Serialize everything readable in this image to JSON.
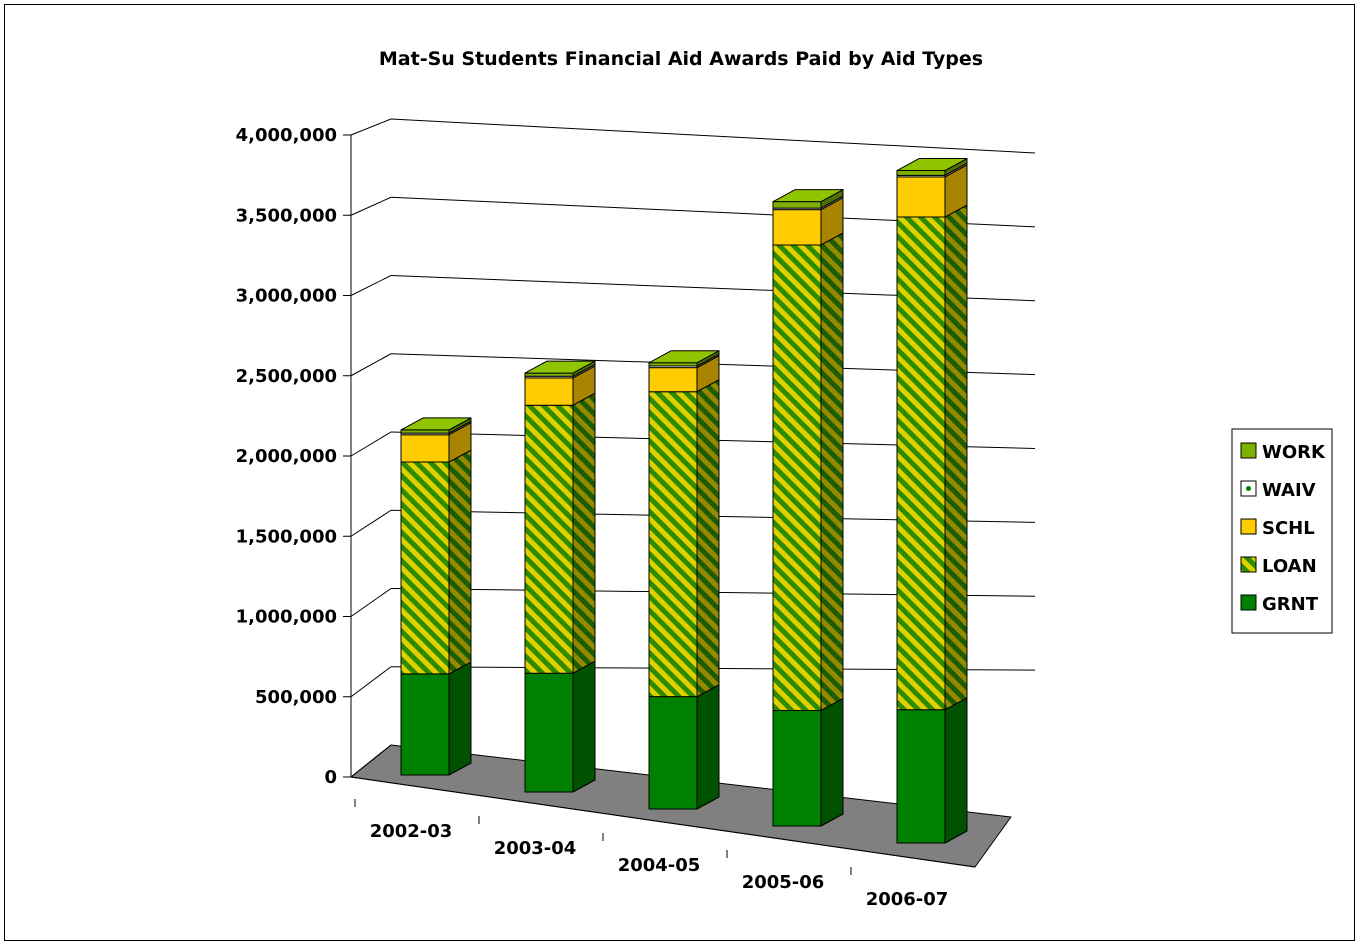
{
  "chart_data": {
    "type": "bar",
    "stacked": true,
    "style": "3d-stacked-column",
    "title": "Mat-Su Students Financial Aid Awards Paid by Aid Types",
    "xlabel": "",
    "ylabel": "",
    "ylim": [
      0,
      4000000
    ],
    "y_ticks": [
      "0",
      "500,000",
      "1,000,000",
      "1,500,000",
      "2,000,000",
      "2,500,000",
      "3,000,000",
      "3,500,000",
      "4,000,000"
    ],
    "y_tick_values": [
      0,
      500000,
      1000000,
      1500000,
      2000000,
      2500000,
      3000000,
      3500000,
      4000000
    ],
    "grid": true,
    "legend_position": "right",
    "categories": [
      "2002-03",
      "2003-04",
      "2004-05",
      "2005-06",
      "2006-07"
    ],
    "series": [
      {
        "name": "GRNT",
        "color": "#008000",
        "pattern": "solid",
        "values": [
          630000,
          740000,
          700000,
          720000,
          830000
        ]
      },
      {
        "name": "LOAN",
        "color": "#2e8b00",
        "pattern": "diagonal-stripes",
        "values": [
          1320000,
          1670000,
          1900000,
          2900000,
          3070000
        ]
      },
      {
        "name": "SCHL",
        "color": "#ffcc00",
        "pattern": "solid",
        "values": [
          170000,
          170000,
          150000,
          220000,
          250000
        ]
      },
      {
        "name": "WAIV",
        "color": "#ffffff",
        "pattern": "outline",
        "values": [
          10000,
          10000,
          10000,
          10000,
          10000
        ]
      },
      {
        "name": "WORK",
        "color": "#7db000",
        "pattern": "solid",
        "values": [
          20000,
          20000,
          20000,
          40000,
          30000
        ]
      }
    ],
    "legend_order": [
      "WORK",
      "WAIV",
      "SCHL",
      "LOAN",
      "GRNT"
    ],
    "floor_color": "#808080"
  }
}
